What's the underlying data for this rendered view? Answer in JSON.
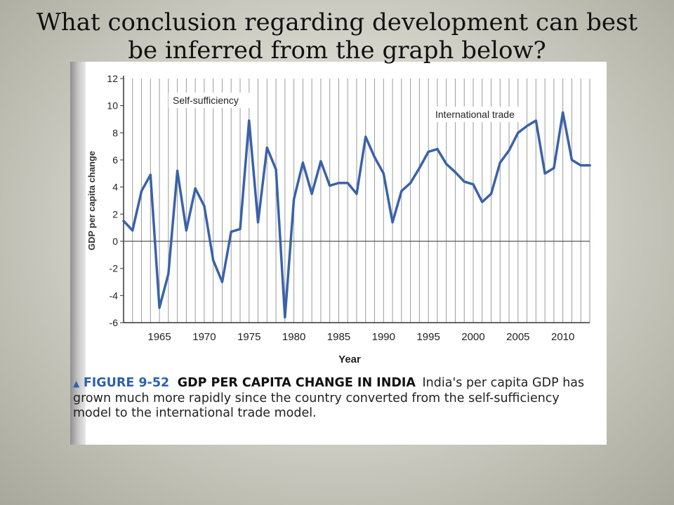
{
  "slide": {
    "title": "What conclusion regarding development can best be inferred from the graph below?"
  },
  "colors": {
    "line": "#3a62a9",
    "grid": "#9a9a9a",
    "zero_line": "#555555",
    "figure_number": "#2d62a8"
  },
  "chart_data": {
    "type": "line",
    "ylabel": "GDP per capita change",
    "xlabel": "Year",
    "ylim": [
      -6,
      12
    ],
    "xlim": [
      1961,
      2013
    ],
    "y_ticks": [
      "12",
      "10",
      "8",
      "6",
      "4",
      "2",
      "0",
      "-2",
      "-4",
      "-6"
    ],
    "x_ticks": [
      "1965",
      "1970",
      "1975",
      "1980",
      "1985",
      "1990",
      "1995",
      "2000",
      "2005",
      "2010"
    ],
    "grid": "vertical-yearly",
    "annotations": [
      "Self-sufficiency",
      "International trade"
    ],
    "x": [
      1961,
      1962,
      1963,
      1964,
      1965,
      1966,
      1967,
      1968,
      1969,
      1970,
      1971,
      1972,
      1973,
      1974,
      1975,
      1976,
      1977,
      1978,
      1979,
      1980,
      1981,
      1982,
      1983,
      1984,
      1985,
      1986,
      1987,
      1988,
      1989,
      1990,
      1991,
      1992,
      1993,
      1994,
      1995,
      1996,
      1997,
      1998,
      1999,
      2000,
      2001,
      2002,
      2003,
      2004,
      2005,
      2006,
      2007,
      2008,
      2009,
      2010,
      2011,
      2012,
      2013
    ],
    "values": [
      1.5,
      0.8,
      3.7,
      4.9,
      -4.9,
      -2.4,
      5.2,
      0.8,
      3.9,
      2.6,
      -1.4,
      -3.0,
      0.7,
      0.9,
      8.9,
      1.4,
      6.9,
      5.3,
      -5.6,
      3.1,
      5.8,
      3.5,
      5.9,
      4.1,
      4.3,
      4.3,
      3.5,
      7.7,
      6.2,
      5.0,
      1.4,
      3.7,
      4.3,
      5.4,
      6.6,
      6.8,
      5.7,
      5.1,
      4.4,
      4.2,
      2.9,
      3.5,
      5.8,
      6.7,
      8.0,
      8.5,
      8.9,
      5.0,
      5.4,
      9.5,
      6.0,
      5.6,
      5.6
    ]
  },
  "caption": {
    "marker": "▲",
    "figure_number": "FIGURE 9-52",
    "figure_title": "GDP PER CAPITA CHANGE IN INDIA",
    "text": "India's per capita GDP has grown much more rapidly since the country converted from the self-sufficiency model to the international trade model."
  }
}
